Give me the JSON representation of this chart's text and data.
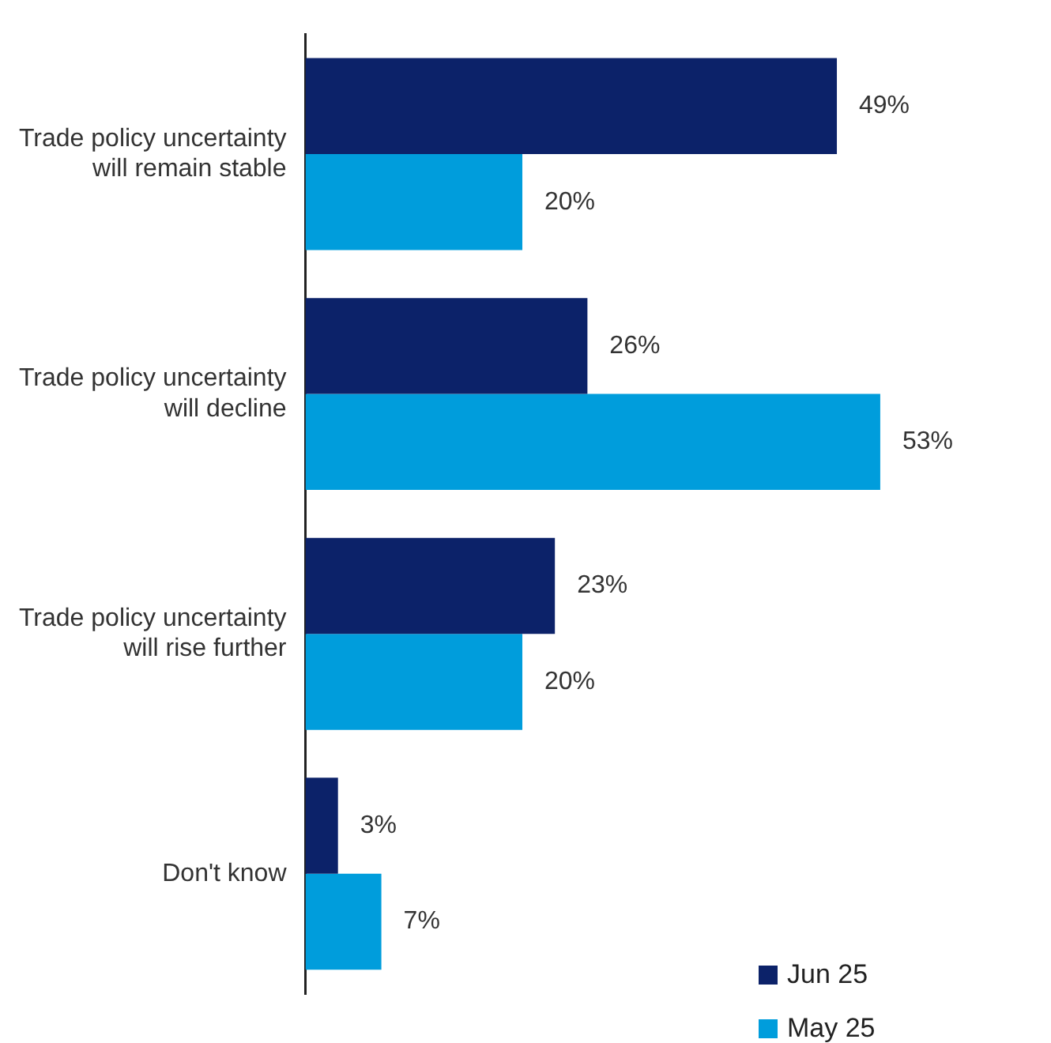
{
  "chart_data": {
    "type": "bar",
    "orientation": "horizontal",
    "legend": "bottom right",
    "categories": [
      "Trade policy uncertainty will remain stable",
      "Trade policy uncertainty will decline",
      "Trade policy uncertainty will rise further",
      "Don't know"
    ],
    "series": [
      {
        "name": "Jun 25",
        "color": "#0c2269",
        "values": [
          49,
          26,
          23,
          3
        ],
        "value_labels": [
          "49%",
          "26%",
          "23%",
          "3%"
        ]
      },
      {
        "name": "May 25",
        "color": "#009ddc",
        "values": [
          20,
          53,
          20,
          7
        ],
        "value_labels": [
          "20%",
          "53%",
          "20%",
          "7%"
        ]
      }
    ]
  }
}
